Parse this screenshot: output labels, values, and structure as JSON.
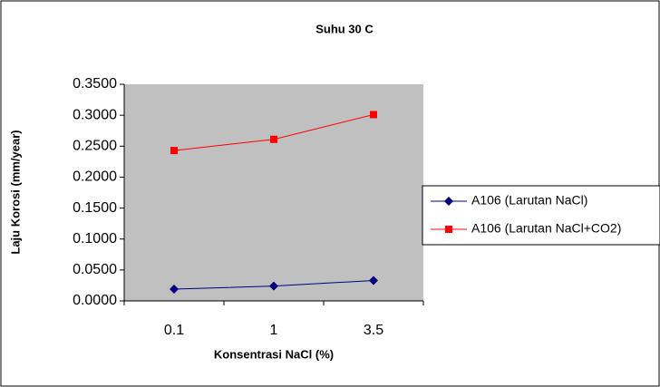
{
  "chart_data": {
    "type": "line",
    "title": "Suhu 30 C",
    "x_label": "Konsentrasi NaCl (%)",
    "y_label": "Laju Korosi (mm/year)",
    "categories": [
      "0.1",
      "1",
      "3.5"
    ],
    "series": [
      {
        "name": "A106 (Larutan NaCl)",
        "color": "#000080",
        "marker": "diamond",
        "values": [
          0.019,
          0.024,
          0.033
        ]
      },
      {
        "name": "A106 (Larutan NaCl+CO2)",
        "color": "#ff0000",
        "marker": "square",
        "values": [
          0.243,
          0.261,
          0.301
        ]
      }
    ],
    "ylim": [
      0,
      0.35
    ],
    "yticks": [
      {
        "value": 0,
        "label": "0.0000"
      },
      {
        "value": 0.05,
        "label": "0.0500"
      },
      {
        "value": 0.1,
        "label": "0.1000"
      },
      {
        "value": 0.15,
        "label": "0.1500"
      },
      {
        "value": 0.2,
        "label": "0.2000"
      },
      {
        "value": 0.25,
        "label": "0.2500"
      },
      {
        "value": 0.3,
        "label": "0.3000"
      },
      {
        "value": 0.35,
        "label": "0.3500"
      }
    ],
    "legend": "right"
  }
}
